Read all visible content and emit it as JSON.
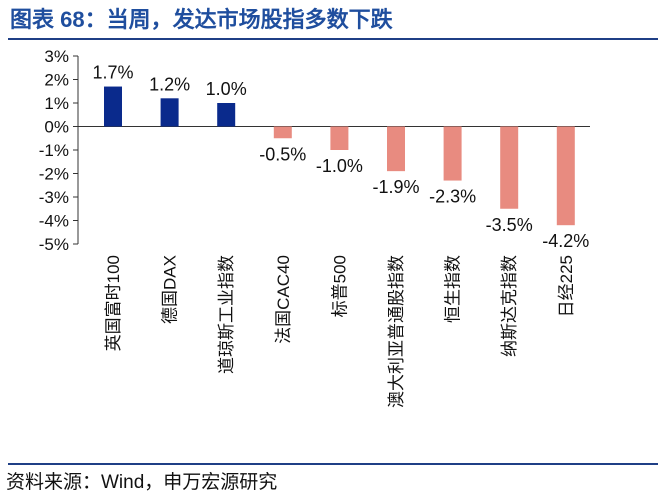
{
  "title": "图表 68：当周，发达市场股指多数下跌",
  "source": "资料来源：Wind，申万宏源研究",
  "colors": {
    "title": "#1f4e9e",
    "positive": "#0a2a8c",
    "negative": "#e88b80",
    "axis": "#333333"
  },
  "chart_data": {
    "type": "bar",
    "title": "当周，发达市场股指多数下跌",
    "xlabel": "",
    "ylabel": "",
    "ylim": [
      -5,
      3
    ],
    "yticks": [
      3,
      2,
      1,
      0,
      -1,
      -2,
      -3,
      -4,
      -5
    ],
    "ytick_labels": [
      "3%",
      "2%",
      "1%",
      "0%",
      "-1%",
      "-2%",
      "-3%",
      "-4%",
      "-5%"
    ],
    "categories": [
      "英国富时100",
      "德国DAX",
      "道琼斯工业指数",
      "法国CAC40",
      "标普500",
      "澳大利亚普通股指数",
      "恒生指数",
      "纳斯达克指数",
      "日经225"
    ],
    "values": [
      1.7,
      1.2,
      1.0,
      -0.5,
      -1.0,
      -1.9,
      -2.3,
      -3.5,
      -4.2
    ],
    "data_labels": [
      "1.7%",
      "1.2%",
      "1.0%",
      "-0.5%",
      "-1.0%",
      "-1.9%",
      "-2.3%",
      "-3.5%",
      "-4.2%"
    ],
    "grid": false,
    "legend": "none"
  }
}
